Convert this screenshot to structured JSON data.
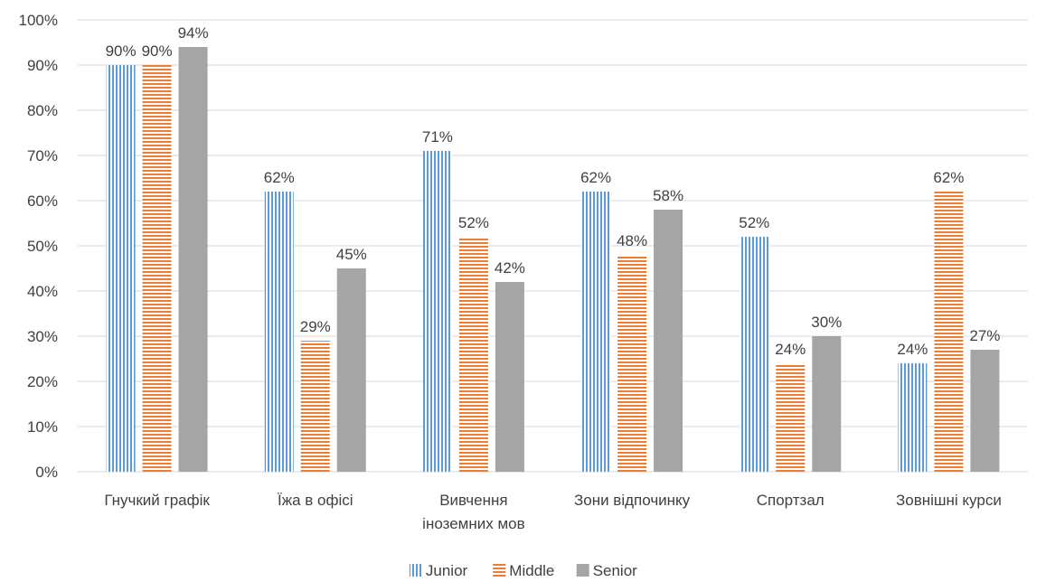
{
  "chart_data": {
    "type": "bar",
    "categories": [
      [
        "Гнучкий графік"
      ],
      [
        "Їжа в офісі"
      ],
      [
        "Вивчення",
        "іноземних мов"
      ],
      [
        "Зони відпочинку"
      ],
      [
        "Спортзал"
      ],
      [
        "Зовнішні курси"
      ]
    ],
    "series": [
      {
        "name": "Junior",
        "pattern": "vertical-lines",
        "color": "#5B9BD5",
        "values": [
          90,
          62,
          71,
          62,
          52,
          24
        ],
        "labels": [
          "90%",
          "62%",
          "71%",
          "62%",
          "52%",
          "24%"
        ]
      },
      {
        "name": "Middle",
        "pattern": "horizontal-lines",
        "color": "#ED7D31",
        "values": [
          90,
          29,
          52,
          48,
          24,
          62
        ],
        "labels": [
          "90%",
          "29%",
          "52%",
          "48%",
          "24%",
          "62%"
        ]
      },
      {
        "name": "Senior",
        "pattern": "solid",
        "color": "#A5A5A5",
        "values": [
          94,
          45,
          42,
          58,
          30,
          27
        ],
        "labels": [
          "94%",
          "45%",
          "42%",
          "58%",
          "30%",
          "27%"
        ]
      }
    ],
    "ylim": [
      0,
      100
    ],
    "yticks": [
      "0%",
      "10%",
      "20%",
      "30%",
      "40%",
      "50%",
      "60%",
      "70%",
      "80%",
      "90%",
      "100%"
    ],
    "grid": true,
    "legend_position": "bottom",
    "gridline_color": "#D9D9D9"
  }
}
